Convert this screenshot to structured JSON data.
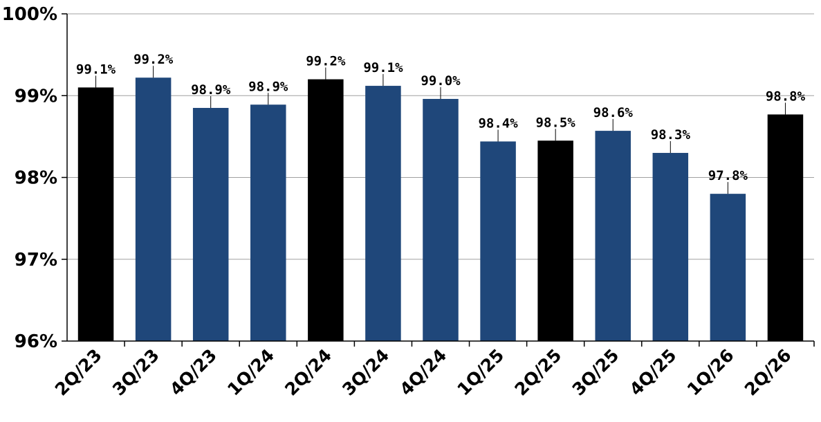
{
  "chart_data": {
    "type": "bar",
    "categories": [
      "2Q/23",
      "3Q/23",
      "4Q/23",
      "1Q/24",
      "2Q/24",
      "3Q/24",
      "4Q/24",
      "1Q/25",
      "2Q/25",
      "3Q/25",
      "4Q/25",
      "1Q/26",
      "2Q/26"
    ],
    "values": [
      99.1,
      99.22,
      98.85,
      98.89,
      99.2,
      99.12,
      98.96,
      98.44,
      98.45,
      98.57,
      98.3,
      97.8,
      98.77
    ],
    "data_labels": [
      "99.1%",
      "99.2%",
      "98.9%",
      "98.9%",
      "99.2%",
      "99.1%",
      "99.0%",
      "98.4%",
      "98.5%",
      "98.6%",
      "98.3%",
      "97.8%",
      "98.8%"
    ],
    "highlight": [
      true,
      false,
      false,
      false,
      true,
      false,
      false,
      false,
      true,
      false,
      false,
      false,
      true
    ],
    "colors": {
      "highlight": "#000000",
      "default": "#1f477a"
    },
    "ylim": [
      96,
      100
    ],
    "yticks": [
      96,
      97,
      98,
      99,
      100
    ],
    "ytick_labels": [
      "96%",
      "97%",
      "98%",
      "99%",
      "100%"
    ],
    "grid": true
  }
}
